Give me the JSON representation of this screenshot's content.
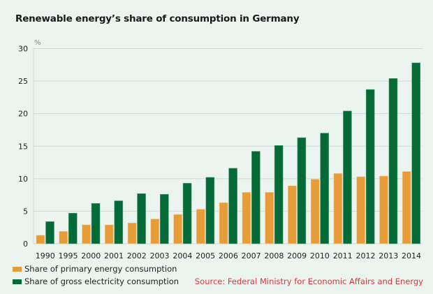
{
  "chart_data": {
    "type": "bar",
    "title": "Renewable energy’s share of consumption in Germany",
    "xlabel": "",
    "ylabel": "%",
    "ylim": [
      0,
      30
    ],
    "yticks": [
      0,
      5,
      10,
      15,
      20,
      25,
      30
    ],
    "grid": true,
    "legend_position": "bottom-left",
    "categories": [
      "1990",
      "1995",
      "2000",
      "2001",
      "2002",
      "2003",
      "2004",
      "2005",
      "2006",
      "2007",
      "2008",
      "2009",
      "2010",
      "2011",
      "2012",
      "2013",
      "2014"
    ],
    "series": [
      {
        "name": "Share of primary energy consumption",
        "color": "#e89c38",
        "values": [
          1.3,
          1.9,
          2.9,
          2.9,
          3.2,
          3.8,
          4.5,
          5.3,
          6.3,
          7.9,
          7.9,
          8.9,
          9.9,
          10.8,
          10.3,
          10.4,
          11.1
        ]
      },
      {
        "name": "Share of gross electricity consumption",
        "color": "#046a38",
        "values": [
          3.4,
          4.7,
          6.2,
          6.6,
          7.7,
          7.6,
          9.3,
          10.2,
          11.6,
          14.2,
          15.1,
          16.3,
          17.0,
          20.4,
          23.7,
          25.4,
          27.8
        ]
      }
    ],
    "source": "Source: Federal Ministry for Economic Affairs and Energy"
  }
}
